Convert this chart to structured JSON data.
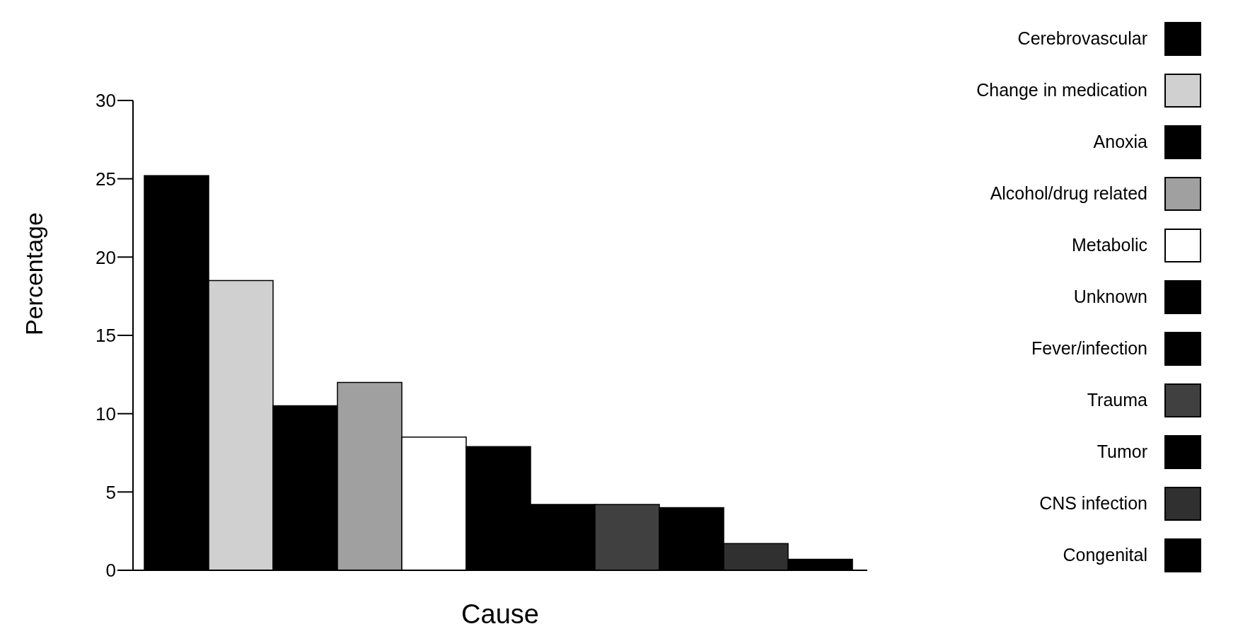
{
  "chart_data": {
    "type": "bar",
    "xlabel": "Cause",
    "ylabel": "Percentage",
    "categories": [
      null
    ],
    "ylim": [
      0,
      30
    ],
    "yticks": [
      0,
      5,
      10,
      15,
      20,
      25,
      30
    ],
    "legend": "right",
    "series": [
      {
        "name": "Cerebrovascular",
        "color": "#000000",
        "values": [
          25.2
        ]
      },
      {
        "name": "Change in medication",
        "color": "#d0d0d0",
        "values": [
          18.5
        ]
      },
      {
        "name": "Anoxia",
        "color": "#000000",
        "values": [
          10.5
        ]
      },
      {
        "name": "Alcohol/drug related",
        "color": "#a0a0a0",
        "values": [
          12.0
        ]
      },
      {
        "name": "Metabolic",
        "color": "#ffffff",
        "values": [
          8.5
        ]
      },
      {
        "name": "Unknown",
        "color": "#000000",
        "values": [
          7.9
        ]
      },
      {
        "name": "Fever/infection",
        "color": "#000000",
        "values": [
          4.2
        ]
      },
      {
        "name": "Trauma",
        "color": "#404040",
        "values": [
          4.2
        ]
      },
      {
        "name": "Tumor",
        "color": "#000000",
        "values": [
          4.0
        ]
      },
      {
        "name": "CNS infection",
        "color": "#303030",
        "values": [
          1.7
        ]
      },
      {
        "name": "Congenital",
        "color": "#000000",
        "values": [
          0.7
        ]
      }
    ]
  }
}
